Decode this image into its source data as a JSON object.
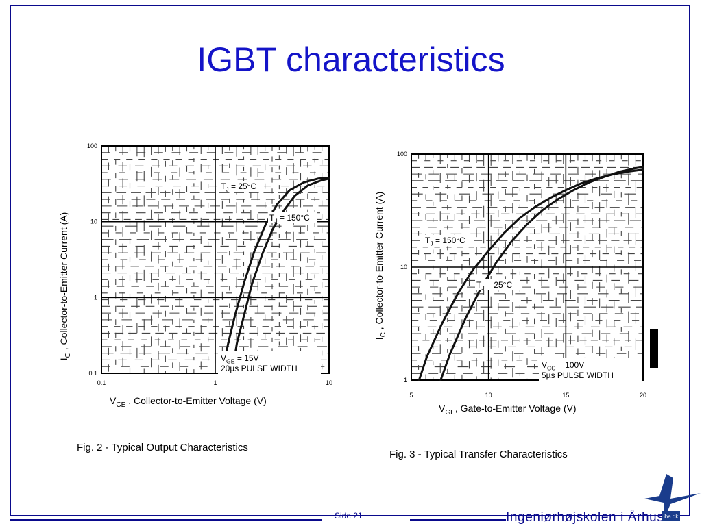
{
  "slide": {
    "title": "IGBT characteristics",
    "page_label": "Side 21",
    "school_name": "Ingeniørhøjskolen i Århus",
    "logo_text": "iha.dk",
    "accent_color": "#1414c8",
    "border_color": "#0a0a8c"
  },
  "chart_data": [
    {
      "type": "line",
      "caption": "Fig. 2 - Typical Output Characteristics",
      "xlabel_prefix": "V",
      "xlabel_sub": "CE",
      "xlabel_rest": " , Collector-to-Emitter Voltage (V)",
      "ylabel_prefix": "I",
      "ylabel_sub": "C",
      "ylabel_rest": " , Collector-to-Emitter Current (A)",
      "xscale": "log",
      "yscale": "log",
      "xlim": [
        0.1,
        10
      ],
      "ylim": [
        0.1,
        100
      ],
      "x_ticks": [
        "0.1",
        "1",
        "10"
      ],
      "y_ticks": [
        "0.1",
        "1",
        "10",
        "100"
      ],
      "grid": true,
      "conditions": [
        "V_GE = 15V",
        "20µs PULSE WIDTH"
      ],
      "series": [
        {
          "name": "T_J = 25°C",
          "x": [
            1.15,
            1.3,
            1.5,
            1.8,
            2.2,
            2.8,
            3.5,
            4.5,
            6,
            8,
            10
          ],
          "y": [
            0.1,
            0.25,
            0.6,
            1.6,
            4,
            9.5,
            17,
            26,
            33,
            37,
            38
          ]
        },
        {
          "name": "T_J = 150°C",
          "x": [
            1.4,
            1.55,
            1.8,
            2.1,
            2.6,
            3.2,
            4,
            5,
            6.5,
            8.5,
            10
          ],
          "y": [
            0.1,
            0.25,
            0.6,
            1.5,
            3.8,
            8,
            14,
            22,
            30,
            35,
            37
          ]
        }
      ],
      "series_labels": [
        {
          "text_main": "T",
          "text_sub": "J",
          "text_rest": " = 25°C"
        },
        {
          "text_main": "T",
          "text_sub": "J",
          "text_rest": " = 150°C"
        }
      ]
    },
    {
      "type": "line",
      "caption": "Fig. 3 - Typical Transfer Characteristics",
      "xlabel_prefix": "V",
      "xlabel_sub": "GE",
      "xlabel_rest": ", Gate-to-Emitter Voltage (V)",
      "ylabel_prefix": "I",
      "ylabel_sub": "C",
      "ylabel_rest": " , Collector-to-Emitter Current (A)",
      "xscale": "linear",
      "yscale": "log",
      "xlim": [
        5,
        20
      ],
      "ylim": [
        1,
        100
      ],
      "x_ticks": [
        "5",
        "10",
        "15",
        "20"
      ],
      "y_ticks": [
        "1",
        "10",
        "100"
      ],
      "grid": true,
      "conditions": [
        "V_CC = 100V",
        "5µs PULSE WIDTH"
      ],
      "series": [
        {
          "name": "T_J = 150°C",
          "x": [
            5.5,
            6,
            7,
            8,
            9,
            10,
            11,
            12,
            13,
            14,
            15,
            16,
            17,
            18,
            19,
            20
          ],
          "y": [
            1,
            1.6,
            3.2,
            5.8,
            9.5,
            14,
            20,
            27,
            34,
            41,
            48,
            55,
            61,
            66,
            70,
            73
          ]
        },
        {
          "name": "T_J = 25°C",
          "x": [
            6.9,
            7.5,
            8.5,
            9.5,
            10.5,
            11.5,
            12.5,
            13.5,
            14.5,
            15.5,
            16.5,
            17.5,
            18.5,
            19.5,
            20
          ],
          "y": [
            1,
            1.7,
            3.5,
            6.5,
            11,
            17,
            24,
            32,
            40,
            48,
            56,
            63,
            70,
            75,
            77
          ]
        }
      ],
      "series_labels": [
        {
          "text_main": "T",
          "text_sub": "J",
          "text_rest": " = 150°C"
        },
        {
          "text_main": "T",
          "text_sub": "J",
          "text_rest": " = 25°C"
        }
      ]
    }
  ]
}
